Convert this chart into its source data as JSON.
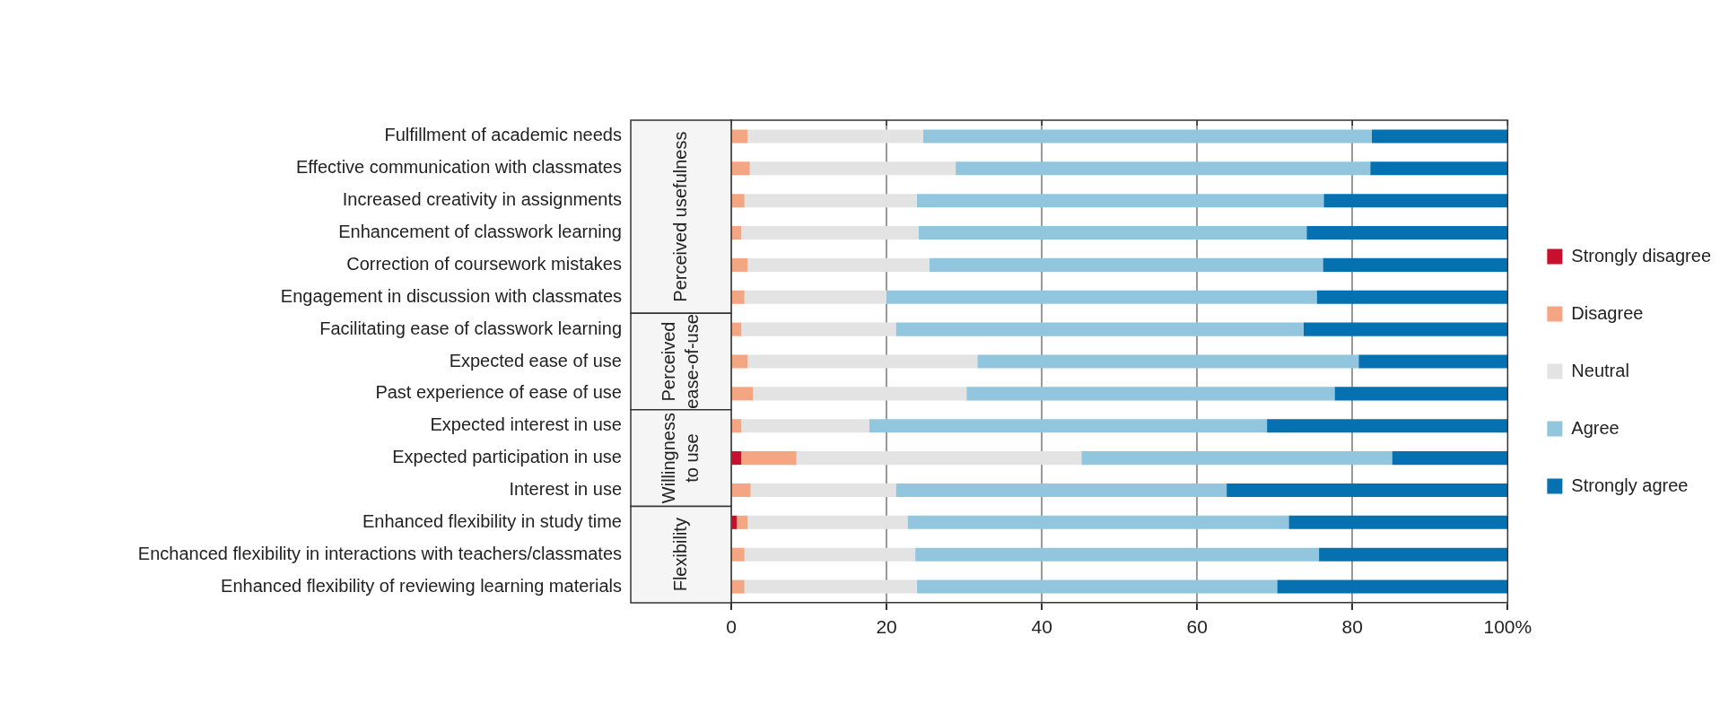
{
  "chart_data": {
    "type": "bar",
    "orientation": "horizontal",
    "stacked": true,
    "categories": [
      "Fulfillment of academic needs",
      "Effective communication with classmates",
      "Increased creativity in assignments",
      "Enhancement of classwork learning",
      "Correction of coursework mistakes",
      "Engagement in discussion with classmates",
      "Facilitating ease of classwork learning",
      "Expected ease of use",
      "Past experience of ease of use",
      "Expected interest in use",
      "Expected participation in use",
      "Interest in use",
      "Enhanced flexibility in study time",
      "Enchanced flexibility in interactions with teachers/classmates",
      "Enhanced flexibility of reviewing learning materials"
    ],
    "series": [
      {
        "name": "Strongly disagree",
        "color": "#c8102e",
        "values": [
          0,
          0,
          0,
          0,
          0,
          0,
          0,
          0,
          0,
          0,
          1.3,
          0,
          0.7,
          0,
          0
        ]
      },
      {
        "name": "Disagree",
        "color": "#f4a582",
        "values": [
          2.1,
          2.4,
          1.7,
          1.3,
          2.1,
          1.7,
          1.3,
          2.1,
          2.8,
          1.3,
          7.1,
          2.5,
          1.4,
          1.7,
          1.7
        ]
      },
      {
        "name": "Neutral",
        "color": "#e3e3e3",
        "values": [
          22.6,
          26.5,
          22.2,
          22.8,
          23.4,
          18.3,
          19.9,
          29.6,
          27.5,
          16.5,
          36.7,
          18.7,
          20.6,
          22.0,
          22.2
        ]
      },
      {
        "name": "Agree",
        "color": "#92c5de",
        "values": [
          57.8,
          53.4,
          52.4,
          50.0,
          50.7,
          55.4,
          52.5,
          49.1,
          47.4,
          51.2,
          40.0,
          42.6,
          49.1,
          52.0,
          46.4
        ]
      },
      {
        "name": "Strongly agree",
        "color": "#0571b0",
        "values": [
          17.5,
          17.7,
          23.7,
          25.9,
          23.8,
          24.6,
          26.3,
          19.2,
          22.3,
          31.0,
          14.9,
          36.2,
          28.2,
          24.3,
          29.7
        ]
      }
    ],
    "xlim": [
      0,
      100
    ],
    "xticks": [
      0,
      20,
      40,
      60,
      80,
      {
        "value": 100,
        "label": "100%"
      }
    ],
    "grid": "x",
    "legend": "right",
    "annotations": [
      "Perceived usefulness",
      "Perceived ease-of-use",
      "Willingness to use",
      "Flexibility"
    ]
  }
}
